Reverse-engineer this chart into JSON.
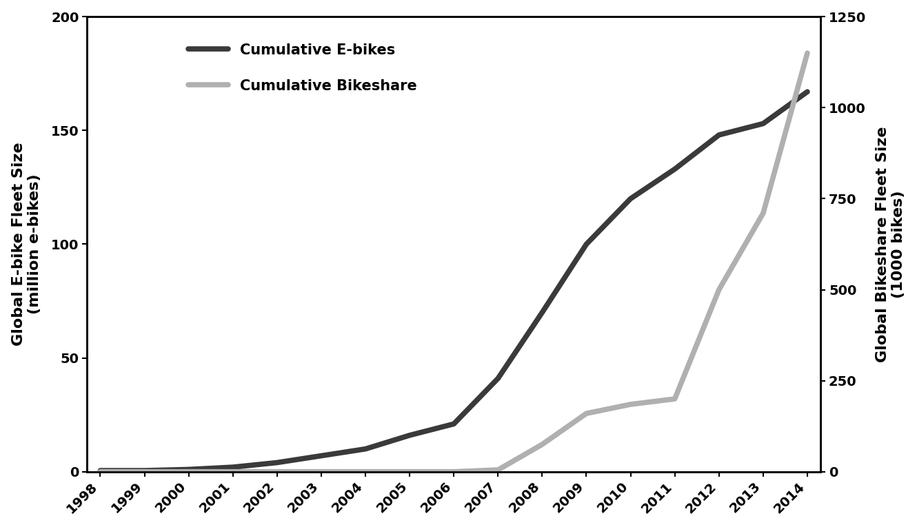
{
  "years": [
    1998,
    1999,
    2000,
    2001,
    2002,
    2003,
    2004,
    2005,
    2006,
    2007,
    2008,
    2009,
    2010,
    2011,
    2012,
    2013,
    2014
  ],
  "ebikes": [
    0.5,
    0.5,
    1.0,
    2.0,
    4.0,
    7.0,
    10.0,
    16.0,
    21.0,
    41.0,
    70.0,
    100.0,
    120.0,
    133.0,
    148.0,
    153.0,
    167.0
  ],
  "bikeshare": [
    0.0,
    0.0,
    0.0,
    0.0,
    0.0,
    0.0,
    0.0,
    0.0,
    0.0,
    5.0,
    75.0,
    160.0,
    185.0,
    200.0,
    500.0,
    710.0,
    1150.0
  ],
  "ebike_color": "#3a3a3a",
  "bikeshare_color": "#b0b0b0",
  "ylabel_left": "Global E-bike Fleet Size\n(million e-bikes)",
  "ylabel_right": "Global Bikeshare Fleet Size\n(1000 bikes)",
  "ylim_left": [
    0,
    200
  ],
  "ylim_right": [
    0,
    1250
  ],
  "yticks_left": [
    0,
    50,
    100,
    150,
    200
  ],
  "yticks_right": [
    0,
    250,
    500,
    750,
    1000,
    1250
  ],
  "legend_labels": [
    "Cumulative E-bikes",
    "Cumulative Bikeshare"
  ],
  "linewidth": 5.5,
  "background_color": "#ffffff",
  "axis_color": "#000000",
  "font_size_labels": 16,
  "font_size_ticks": 14,
  "font_size_legend": 15
}
